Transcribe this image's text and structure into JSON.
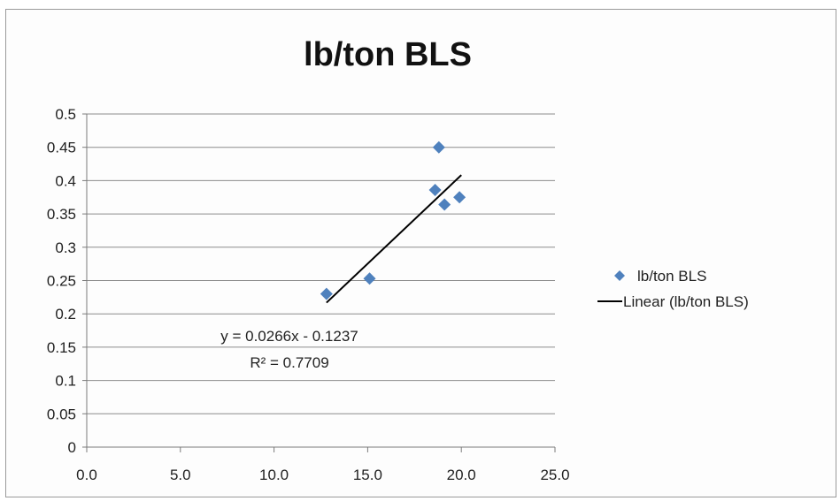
{
  "chart_data": {
    "type": "scatter",
    "title": "lb/ton BLS",
    "xlabel": "",
    "ylabel": "",
    "xlim": [
      0,
      25
    ],
    "ylim": [
      0,
      0.5
    ],
    "x_ticks": [
      "0.0",
      "5.0",
      "10.0",
      "15.0",
      "20.0",
      "25.0"
    ],
    "y_ticks": [
      "0",
      "0.05",
      "0.1",
      "0.15",
      "0.2",
      "0.25",
      "0.3",
      "0.35",
      "0.4",
      "0.45",
      "0.5"
    ],
    "grid": "horizontal",
    "series": [
      {
        "name": "lb/ton BLS",
        "marker": "diamond",
        "color": "#4f81bd",
        "points": [
          {
            "x": 12.8,
            "y": 0.23
          },
          {
            "x": 15.1,
            "y": 0.253
          },
          {
            "x": 18.6,
            "y": 0.386
          },
          {
            "x": 18.8,
            "y": 0.45
          },
          {
            "x": 19.1,
            "y": 0.364
          },
          {
            "x": 19.9,
            "y": 0.375
          }
        ]
      }
    ],
    "trendline": {
      "name": "Linear (lb/ton BLS)",
      "slope": 0.0266,
      "intercept": -0.1237,
      "x_range": [
        12.8,
        20.0
      ],
      "color": "#000000",
      "equation": "y = 0.0266x - 0.1237",
      "r_squared": "R² = 0.7709"
    },
    "legend": {
      "position": "right",
      "entries": [
        "lb/ton BLS",
        "Linear (lb/ton BLS)"
      ]
    }
  }
}
